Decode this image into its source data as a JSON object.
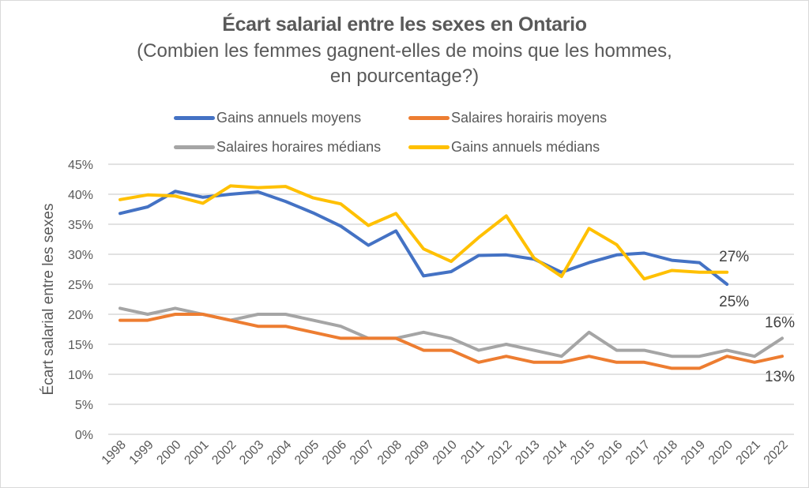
{
  "chart_data": {
    "type": "line",
    "title": "Écart salarial entre les sexes en Ontario",
    "subtitle_line1": "(Combien les femmes gagnent-elles de moins que les hommes,",
    "subtitle_line2": "en pourcentage?)",
    "xlabel": "",
    "ylabel": "Écart salarial entre les sexes",
    "ylim": [
      0,
      45
    ],
    "yticks": [
      "0%",
      "5%",
      "10%",
      "15%",
      "20%",
      "25%",
      "30%",
      "35%",
      "40%",
      "45%"
    ],
    "ytick_values": [
      0,
      5,
      10,
      15,
      20,
      25,
      30,
      35,
      40,
      45
    ],
    "grid": true,
    "legend_position": "top",
    "x": [
      "1998",
      "1999",
      "2000",
      "2001",
      "2002",
      "2003",
      "2004",
      "2005",
      "2006",
      "2007",
      "2008",
      "2009",
      "2010",
      "2011",
      "2012",
      "2013",
      "2014",
      "2015",
      "2016",
      "2017",
      "2018",
      "2019",
      "2020",
      "2021",
      "2022"
    ],
    "series": [
      {
        "name": "Gains annuels moyens",
        "color": "#4472c4",
        "values": [
          36.8,
          37.9,
          40.5,
          39.5,
          40.0,
          40.4,
          38.8,
          36.9,
          34.7,
          31.5,
          33.9,
          26.4,
          27.1,
          29.8,
          29.9,
          29.2,
          27.0,
          28.6,
          29.9,
          30.2,
          29.0,
          28.6,
          25.0,
          null,
          null
        ],
        "end_label": "25%"
      },
      {
        "name": "Salaires horairis moyens",
        "color": "#ed7d31",
        "values": [
          19,
          19,
          20,
          20,
          19,
          18,
          18,
          17,
          16,
          16,
          16,
          14,
          14,
          12,
          13,
          12,
          12,
          13,
          12,
          12,
          11,
          11,
          13,
          12,
          13
        ],
        "end_label": "13%"
      },
      {
        "name": "Salaires horaires médians",
        "color": "#a5a5a5",
        "values": [
          21,
          20,
          21,
          20,
          19,
          20,
          20,
          19,
          18,
          16,
          16,
          17,
          16,
          14,
          15,
          14,
          13,
          17,
          14,
          14,
          13,
          13,
          14,
          13,
          16
        ],
        "end_label": "16%"
      },
      {
        "name": "Gains annuels médians",
        "color": "#ffc000",
        "values": [
          39.1,
          39.9,
          39.7,
          38.5,
          41.4,
          41.1,
          41.3,
          39.4,
          38.4,
          34.8,
          36.8,
          30.9,
          28.8,
          32.8,
          36.4,
          29.4,
          26.3,
          34.3,
          31.6,
          25.9,
          27.3,
          27.0,
          27.0,
          null,
          null
        ],
        "end_label": "27%"
      }
    ]
  }
}
